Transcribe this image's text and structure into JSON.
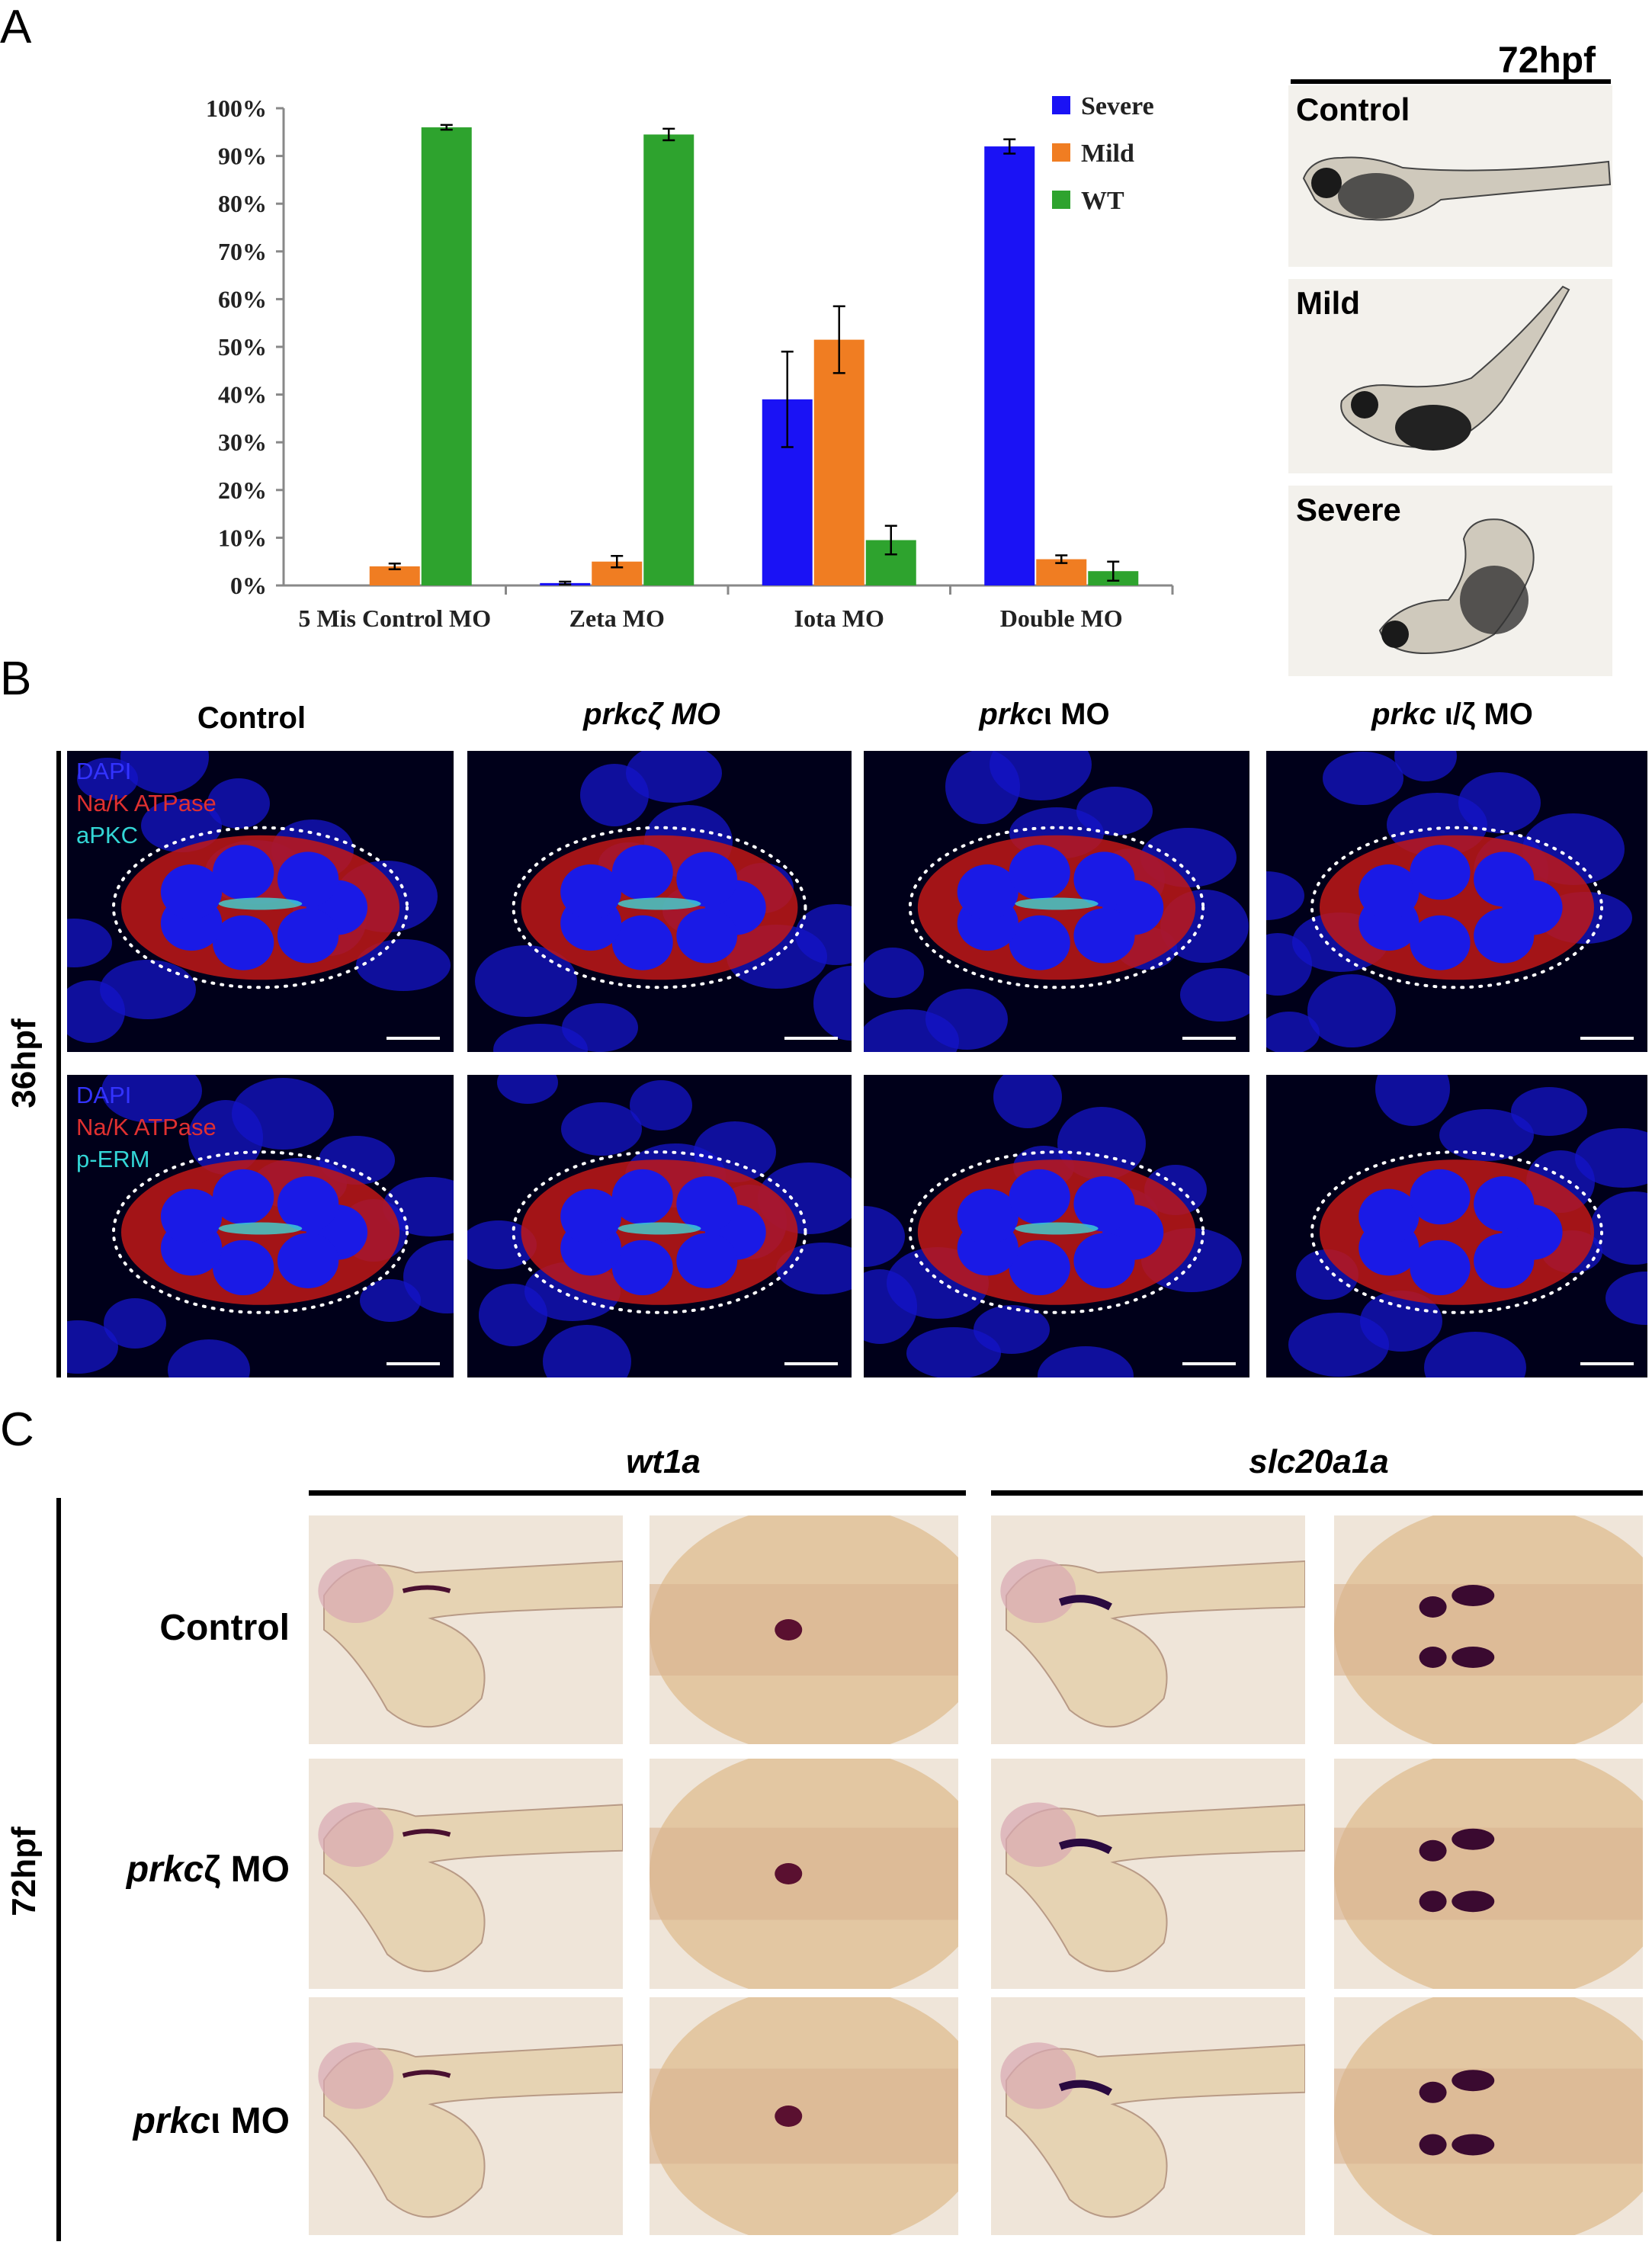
{
  "panels": {
    "a_letter": "A",
    "b_letter": "B",
    "c_letter": "C"
  },
  "panel_a": {
    "stage_label": "72hpf",
    "embryo_labels": [
      "Control",
      "Mild",
      "Severe"
    ]
  },
  "chart_data": {
    "type": "bar",
    "categories": [
      "5 Mis Control MO",
      "Zeta MO",
      "Iota MO",
      "Double MO"
    ],
    "series": [
      {
        "name": "Severe",
        "values": [
          0,
          0.5,
          39,
          92
        ],
        "errors": [
          0,
          0.3,
          10,
          1.5
        ],
        "color": "#1a12f5"
      },
      {
        "name": "Mild",
        "values": [
          4,
          5,
          51.5,
          5.5
        ],
        "errors": [
          0.6,
          1.2,
          7,
          0.8
        ],
        "color": "#f07d22"
      },
      {
        "name": "WT",
        "values": [
          96,
          94.5,
          9.5,
          3
        ],
        "errors": [
          0.5,
          1.2,
          3,
          2
        ],
        "color": "#2ea32e"
      }
    ],
    "yticks": [
      "0%",
      "10%",
      "20%",
      "30%",
      "40%",
      "50%",
      "60%",
      "70%",
      "80%",
      "90%",
      "100%"
    ],
    "ylim": [
      0,
      100
    ],
    "legend_position": "top-right"
  },
  "panel_b": {
    "columns": [
      "Control",
      "prkcζ MO",
      "prkcι MO",
      "prkc ι/ζ MO"
    ],
    "column_parts": [
      {
        "italic": "",
        "normal": "Control"
      },
      {
        "italic": "prkcζ MO",
        "normal": ""
      },
      {
        "italic": "prkc",
        "normal": "ι MO"
      },
      {
        "italic": "prkc ",
        "normal": "ι/ζ MO"
      }
    ],
    "stage_label": "36hpf",
    "row1_stains": [
      "DAPI",
      "Na/K ATPase",
      "aPKC"
    ],
    "row2_stains": [
      "DAPI",
      "Na/K ATPase",
      "p-ERM"
    ]
  },
  "panel_c": {
    "genes": [
      "wt1a",
      "slc20a1a"
    ],
    "stage_label": "72hpf",
    "rows": [
      {
        "italic": "",
        "normal": "Control"
      },
      {
        "italic": "prkc",
        "normal": "ζ MO"
      },
      {
        "italic": "prkc",
        "normal": "ι MO"
      }
    ]
  }
}
